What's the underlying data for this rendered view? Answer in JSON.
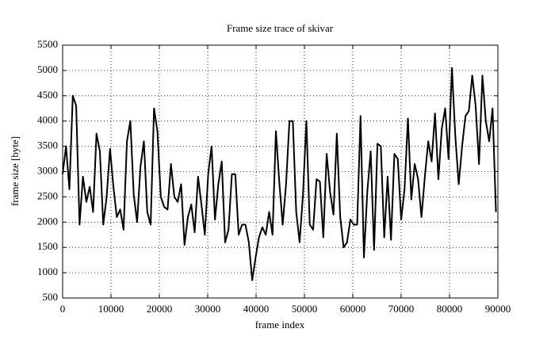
{
  "chart_data": {
    "type": "line",
    "title": "Frame size trace of skivar",
    "x_label": "frame index",
    "y_label": "frame size [byte]",
    "x": [
      0,
      700,
      1400,
      2100,
      2800,
      3500,
      4200,
      4900,
      5600,
      6300,
      7000,
      7700,
      8400,
      9100,
      9800,
      10500,
      11200,
      11900,
      12600,
      13300,
      14000,
      14700,
      15400,
      16100,
      16800,
      17500,
      18200,
      18900,
      19600,
      20300,
      21000,
      21700,
      22400,
      23100,
      23800,
      24500,
      25200,
      25900,
      26600,
      27300,
      28000,
      28700,
      29400,
      30100,
      30800,
      31500,
      32200,
      32900,
      33600,
      34300,
      35000,
      35700,
      36400,
      37100,
      37800,
      38500,
      39200,
      39900,
      40600,
      41300,
      42000,
      42700,
      43400,
      44100,
      44800,
      45500,
      46200,
      46900,
      47600,
      48300,
      49000,
      49700,
      50400,
      51100,
      51800,
      52500,
      53200,
      53900,
      54600,
      55300,
      56000,
      56700,
      57400,
      58100,
      58800,
      59500,
      60200,
      60900,
      61600,
      62300,
      63000,
      63700,
      64400,
      65100,
      65800,
      66500,
      67200,
      67900,
      68600,
      69300,
      70000,
      70700,
      71400,
      72100,
      72800,
      73500,
      74200,
      74900,
      75600,
      76300,
      77000,
      77700,
      78400,
      79100,
      79800,
      80500,
      81200,
      81900,
      82600,
      83300,
      84000,
      84700,
      85400,
      86100,
      86800,
      87500,
      88200,
      88900,
      89600
    ],
    "series": [
      {
        "name": "skivar",
        "color": "#000000",
        "values": [
          2950,
          3500,
          2650,
          4500,
          4300,
          1950,
          2900,
          2400,
          2700,
          2200,
          3750,
          3400,
          1950,
          2500,
          3450,
          2700,
          2100,
          2250,
          1850,
          3600,
          4000,
          2550,
          2000,
          3100,
          3600,
          2200,
          1950,
          4250,
          3800,
          2500,
          2300,
          2250,
          3150,
          2500,
          2400,
          2750,
          1550,
          2100,
          2350,
          1800,
          2900,
          2350,
          1750,
          2950,
          3500,
          2050,
          2750,
          3200,
          1600,
          1850,
          2950,
          2950,
          1750,
          1950,
          1950,
          1600,
          850,
          1300,
          1700,
          1900,
          1750,
          2200,
          1750,
          3800,
          2800,
          1950,
          2750,
          4000,
          4000,
          2200,
          1600,
          2550,
          4000,
          1950,
          1850,
          2850,
          2800,
          1700,
          3350,
          2600,
          2150,
          3750,
          2100,
          1500,
          1600,
          2050,
          1950,
          1950,
          4100,
          1300,
          2600,
          3400,
          1450,
          3550,
          3500,
          1700,
          2900,
          1650,
          3350,
          3250,
          2050,
          2650,
          4050,
          2450,
          3150,
          2850,
          2100,
          2900,
          3600,
          3200,
          4150,
          2850,
          3850,
          4250,
          3250,
          5050,
          3700,
          2750,
          3500,
          4100,
          4200,
          4900,
          4300,
          3150,
          4900,
          4000,
          3600,
          4250,
          2200
        ]
      }
    ],
    "xlim": [
      0,
      90000
    ],
    "ylim": [
      500,
      5500
    ],
    "xticks": [
      0,
      10000,
      20000,
      30000,
      40000,
      50000,
      60000,
      70000,
      80000,
      90000
    ],
    "yticks": [
      500,
      1000,
      1500,
      2000,
      2500,
      3000,
      3500,
      4000,
      4500,
      5000,
      5500
    ],
    "grid": true
  }
}
